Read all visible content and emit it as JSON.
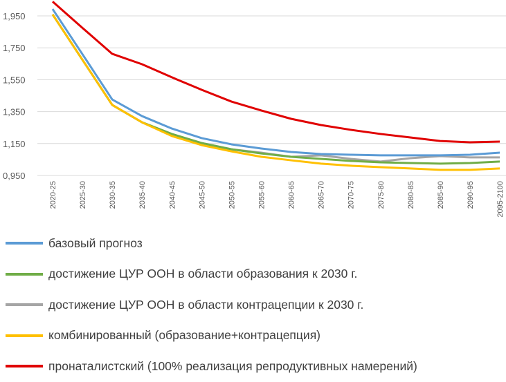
{
  "chart_data": {
    "type": "line",
    "title": "",
    "xlabel": "",
    "ylabel": "",
    "ylim": [
      0.95,
      2.05
    ],
    "yticks": [
      "0,950",
      "1,150",
      "1,350",
      "1,550",
      "1,750",
      "1,950"
    ],
    "ytick_values": [
      0.95,
      1.15,
      1.35,
      1.55,
      1.75,
      1.95
    ],
    "grid": true,
    "legend_position": "bottom",
    "categories": [
      "2020-25",
      "2025-30",
      "2030-35",
      "2035-40",
      "2040-45",
      "2045-50",
      "2050-55",
      "2055-60",
      "2060-65",
      "2065-70",
      "2070-75",
      "2075-80",
      "2080-85",
      "2085-90",
      "2090-95",
      "2095-2100"
    ],
    "series": [
      {
        "name": "базовый прогноз",
        "color": "#5b9bd5",
        "values": [
          1.993,
          1.71,
          1.426,
          1.322,
          1.244,
          1.184,
          1.145,
          1.119,
          1.097,
          1.084,
          1.08,
          1.076,
          1.076,
          1.076,
          1.08,
          1.093
        ]
      },
      {
        "name": "достижение ЦУР ООН в области образования к 2030 г.",
        "color": "#70ad47",
        "values": [
          1.959,
          1.675,
          1.392,
          1.283,
          1.21,
          1.153,
          1.114,
          1.088,
          1.067,
          1.054,
          1.041,
          1.032,
          1.028,
          1.024,
          1.028,
          1.037
        ]
      },
      {
        "name": "достижение ЦУР ООН в области контрацепции к 2030 г.",
        "color": "#a5a5a5",
        "values": [
          1.959,
          1.675,
          1.392,
          1.283,
          1.2,
          1.153,
          1.114,
          1.093,
          1.067,
          1.076,
          1.054,
          1.037,
          1.058,
          1.071,
          1.063,
          1.063
        ]
      },
      {
        "name": "комбинированный  (образование+контрацепция)",
        "color": "#ffc000",
        "values": [
          1.959,
          1.675,
          1.392,
          1.283,
          1.197,
          1.14,
          1.101,
          1.067,
          1.045,
          1.024,
          1.011,
          1.002,
          0.994,
          0.985,
          0.985,
          0.994
        ]
      },
      {
        "name": "пронаталистский  (100% реализация репродуктивных намерений)",
        "color": "#e00000",
        "values": [
          2.04,
          1.875,
          1.712,
          1.647,
          1.565,
          1.487,
          1.413,
          1.357,
          1.305,
          1.266,
          1.236,
          1.21,
          1.188,
          1.166,
          1.158,
          1.162
        ]
      }
    ]
  }
}
